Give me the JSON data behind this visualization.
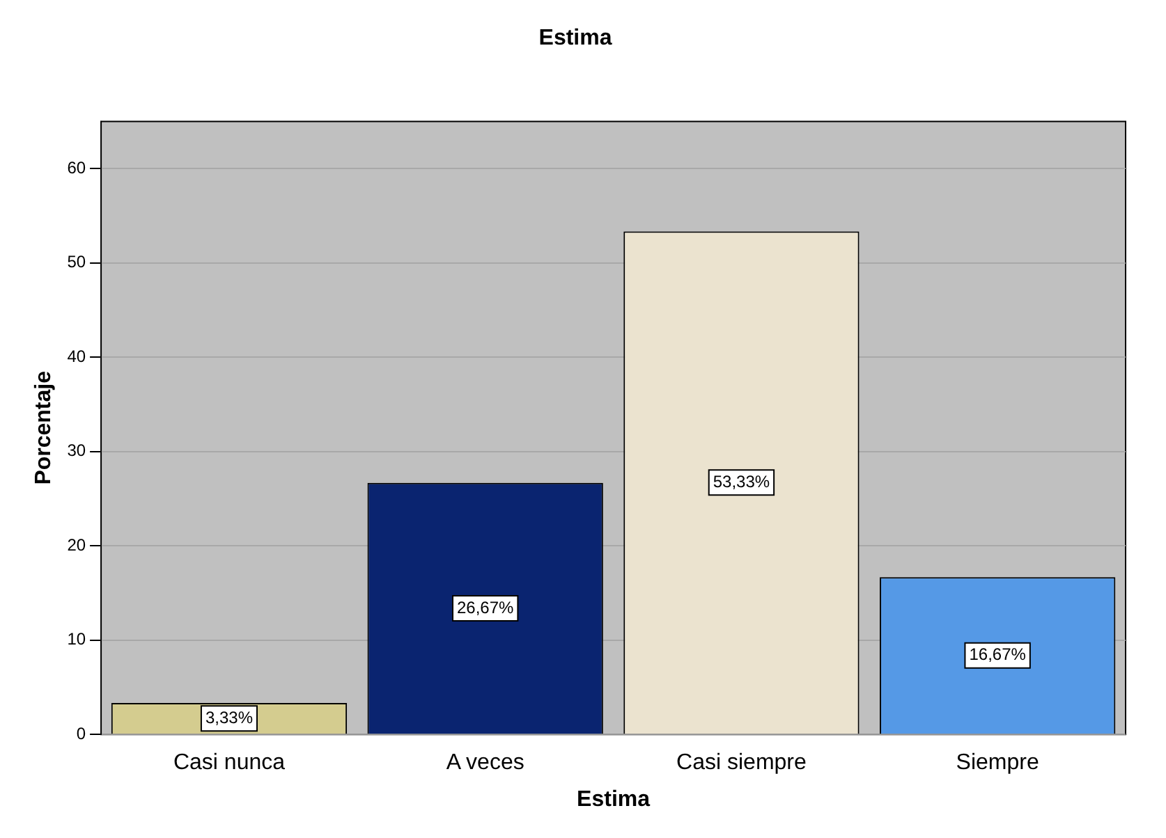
{
  "chart_data": {
    "type": "bar",
    "title": "Estima",
    "xlabel": "Estima",
    "ylabel": "Porcentaje",
    "categories": [
      "Casi nunca",
      "A veces",
      "Casi siempre",
      "Siempre"
    ],
    "values": [
      3.33,
      26.67,
      53.33,
      16.67
    ],
    "colors": [
      "#d4cc8f",
      "#0a2470",
      "#ebe3cf",
      "#5599e6"
    ],
    "value_labels": [
      "3,33%",
      "26,67%",
      "53,33%",
      "16,67%"
    ],
    "ylim": [
      0,
      65
    ],
    "yticks": [
      0,
      10,
      20,
      30,
      40,
      50,
      60
    ],
    "grid": "y"
  }
}
